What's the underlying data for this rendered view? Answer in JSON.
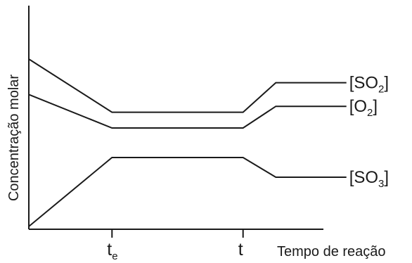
{
  "chart_data": {
    "type": "line",
    "title": "",
    "xlabel": "Tempo de reação",
    "ylabel": "Concentração molar",
    "x_ticks": [
      {
        "key": "te",
        "base": "t",
        "sub": "e",
        "x": 3.3
      },
      {
        "key": "t",
        "base": "t",
        "sub": "",
        "x": 8.5
      }
    ],
    "xlim": [
      0,
      13.5
    ],
    "ylim": [
      0,
      10
    ],
    "grid": false,
    "legend": "inline-right",
    "series": [
      {
        "key": "so2",
        "label_open": "[SO",
        "label_sub": "2",
        "label_close": "]",
        "points": [
          [
            0,
            8.5
          ],
          [
            3.3,
            5.8
          ],
          [
            8.5,
            5.8
          ],
          [
            9.8,
            7.3
          ],
          [
            12.6,
            7.3
          ]
        ]
      },
      {
        "key": "o2",
        "label_open": "[O",
        "label_sub": "2",
        "label_close": "]",
        "points": [
          [
            0,
            6.7
          ],
          [
            3.3,
            5.0
          ],
          [
            8.5,
            5.0
          ],
          [
            9.8,
            6.1
          ],
          [
            12.6,
            6.1
          ]
        ]
      },
      {
        "key": "so3",
        "label_open": "[SO",
        "label_sub": "3",
        "label_close": "]",
        "points": [
          [
            0,
            0.0
          ],
          [
            3.3,
            3.5
          ],
          [
            8.5,
            3.5
          ],
          [
            9.8,
            2.5
          ],
          [
            12.6,
            2.5
          ]
        ]
      }
    ]
  }
}
